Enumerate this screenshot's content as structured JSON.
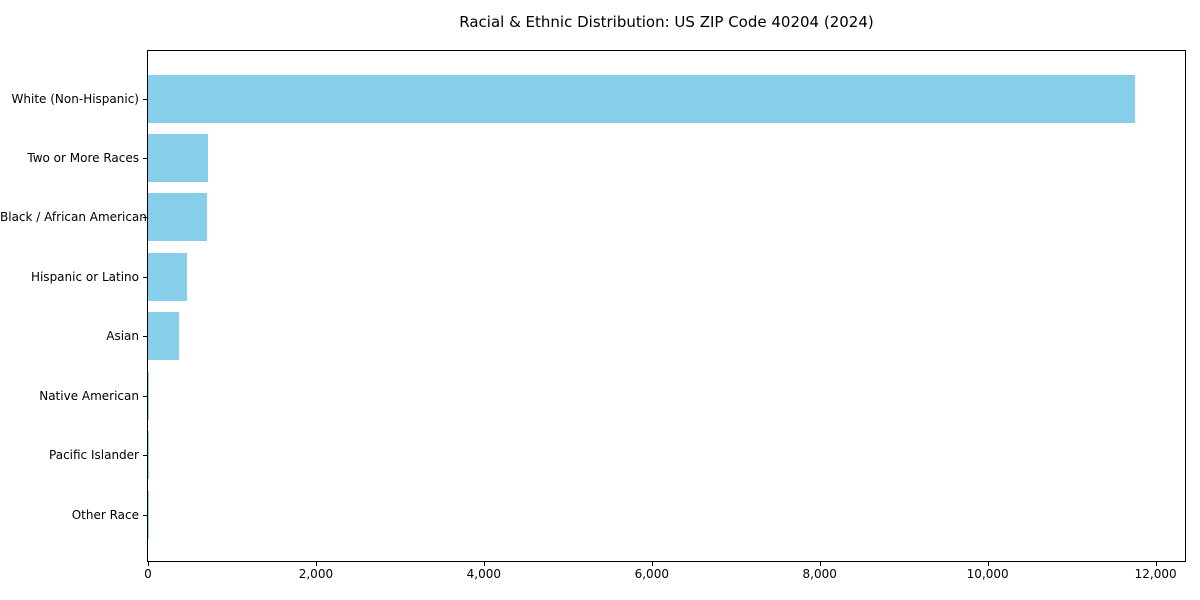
{
  "figure": {
    "background_color": "#ffffff",
    "text_color": "#000000",
    "spine_color": "#000000"
  },
  "chart_data": {
    "type": "bar",
    "orientation": "horizontal",
    "title": "Racial & Ethnic Distribution: US ZIP Code 40204 (2024)",
    "xlabel": "",
    "ylabel": "",
    "categories": [
      "White (Non-Hispanic)",
      "Two or More Races",
      "Black / African American",
      "Hispanic or Latino",
      "Asian",
      "Native American",
      "Pacific Islander",
      "Other Race"
    ],
    "values": [
      11760,
      720,
      700,
      470,
      375,
      15,
      5,
      5
    ],
    "bar_color": "#87CEEB",
    "xlim": [
      0,
      12350
    ],
    "xticks": [
      0,
      2000,
      4000,
      6000,
      8000,
      10000,
      12000
    ],
    "xtick_labels": [
      "0",
      "2,000",
      "4,000",
      "6,000",
      "8,000",
      "10,000",
      "12,000"
    ],
    "grid": false,
    "legend": null
  }
}
